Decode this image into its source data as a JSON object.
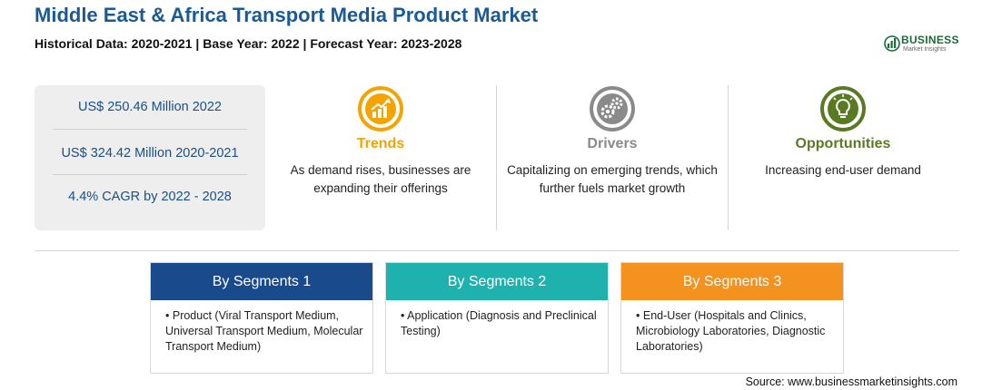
{
  "header": {
    "title": "Middle East & Africa Transport Media Product Market",
    "subtitle": "Historical Data: 2020-2021 | Base Year: 2022 | Forecast Year: 2023-2028"
  },
  "logo": {
    "top": "BUSINESS",
    "bottom": "Market Insights"
  },
  "stats": [
    "US$ 250.46 Million 2022",
    "US$ 324.42 Million 2020-2021",
    "4.4% CAGR by 2022 - 2028"
  ],
  "columns": [
    {
      "heading": "Trends",
      "text": "As demand rises, businesses are expanding their offerings",
      "color": "#f4a300",
      "icon": "chart-growth-icon"
    },
    {
      "heading": "Drivers",
      "text": "Capitalizing on emerging trends, which further fuels market growth",
      "color": "#8a8a8a",
      "icon": "gears-icon"
    },
    {
      "heading": "Opportunities",
      "text": "Increasing end-user demand",
      "color": "#5a7a22",
      "icon": "lightbulb-icon"
    }
  ],
  "segments": [
    {
      "title": "By Segments 1",
      "color": "#184a8c",
      "item": "Product (Viral Transport Medium, Universal Transport Medium, Molecular Transport Medium)"
    },
    {
      "title": "By Segments 2",
      "color": "#1fb1ad",
      "item": "Application (Diagnosis and Preclinical Testing)"
    },
    {
      "title": "By Segments 3",
      "color": "#f3921f",
      "item": "End-User (Hospitals and Clinics, Microbiology Laboratories, Diagnostic Laboratories)"
    }
  ],
  "source": "Source: www.businessmarketinsights.com"
}
